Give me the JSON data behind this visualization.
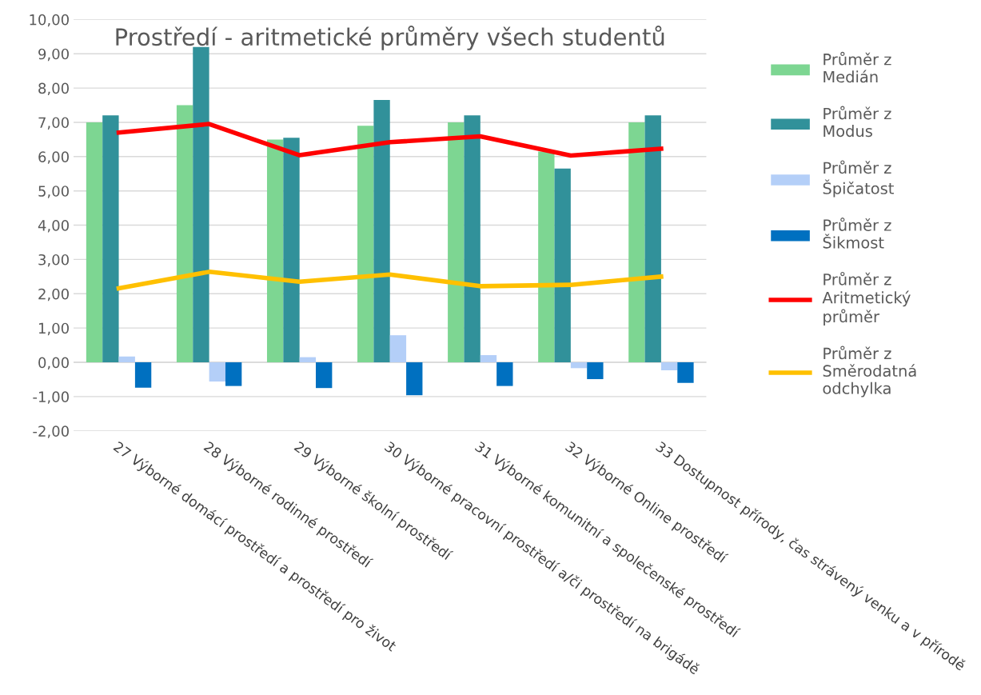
{
  "chart_data": {
    "type": "bar",
    "title": "Prostředí - aritmetické průměry všech studentů",
    "categories": [
      "27 Výborné domácí prostředí a prostředí pro život",
      "28 Výborné rodinné prostředí",
      "29 Výborné školní prostředí",
      "30 Výborné pracovní prostředí a/či prostředí na brigádě",
      "31 Výborné komunitní a společenské prostředí",
      "32 Výborné Online prostředí",
      "33 Dostupnost přírody, čas strávený venku a v přírodě"
    ],
    "series": [
      {
        "name": "Průměr z\nMedián",
        "color": "#7dd692",
        "values": [
          7.0,
          7.5,
          6.5,
          6.9,
          7.0,
          6.15,
          7.0
        ]
      },
      {
        "name": "Průměr z\nModus",
        "color": "#31919a",
        "values": [
          7.2,
          9.2,
          6.55,
          7.65,
          7.2,
          5.65,
          7.2
        ]
      },
      {
        "name": "Průměr z\nŠpičatost",
        "color": "#b4cff8",
        "values": [
          0.17,
          -0.56,
          0.15,
          0.79,
          0.21,
          -0.17,
          -0.23
        ]
      },
      {
        "name": "Průměr z\nŠikmost",
        "color": "#0070c0",
        "values": [
          -0.74,
          -0.69,
          -0.75,
          -0.96,
          -0.69,
          -0.49,
          -0.6
        ]
      },
      {
        "name": "Průměr z\nAritmetický\nprůměr",
        "type": "line",
        "color": "#ff0000",
        "values": [
          6.7,
          6.95,
          6.04,
          6.42,
          6.59,
          6.03,
          6.23
        ]
      },
      {
        "name": "Průměr z\nSměrodatná\nodchylka",
        "type": "line",
        "color": "#ffc000",
        "values": [
          2.16,
          2.64,
          2.35,
          2.56,
          2.22,
          2.26,
          2.5
        ]
      }
    ],
    "ylim": [
      -2,
      10
    ],
    "yticks": [
      {
        "value": -2,
        "label": "-2,00"
      },
      {
        "value": -1,
        "label": "-1,00"
      },
      {
        "value": 0,
        "label": "0,00"
      },
      {
        "value": 1,
        "label": "1,00"
      },
      {
        "value": 2,
        "label": "2,00"
      },
      {
        "value": 3,
        "label": "3,00"
      },
      {
        "value": 4,
        "label": "4,00"
      },
      {
        "value": 5,
        "label": "5,00"
      },
      {
        "value": 6,
        "label": "6,00"
      },
      {
        "value": 7,
        "label": "7,00"
      },
      {
        "value": 8,
        "label": "8,00"
      },
      {
        "value": 9,
        "label": "9,00"
      },
      {
        "value": 10,
        "label": "10,00"
      }
    ],
    "grid": "y",
    "legend": "right",
    "marker": "none"
  }
}
